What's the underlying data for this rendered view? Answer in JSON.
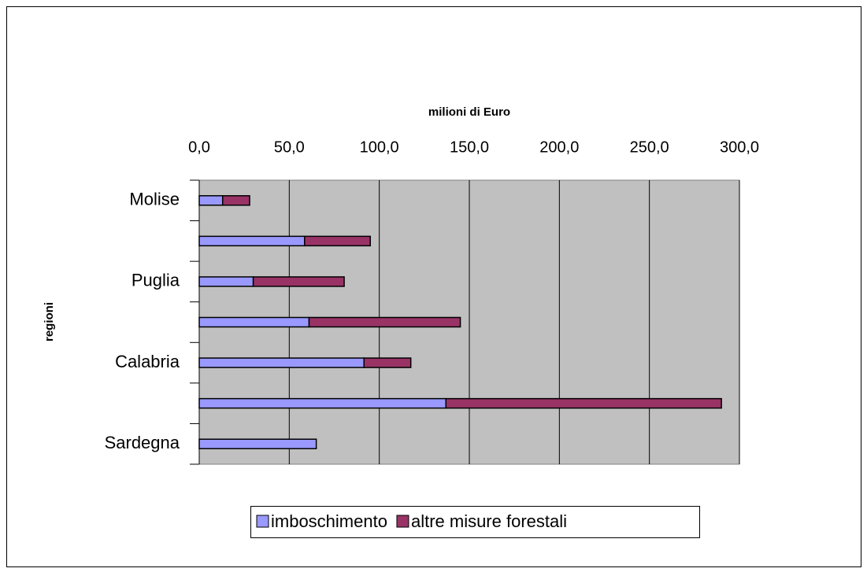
{
  "chart_data": {
    "type": "bar",
    "orientation": "horizontal",
    "stacked": true,
    "xlabel": "milioni di Euro",
    "ylabel": "regioni",
    "categories": [
      "Molise",
      null,
      "Puglia",
      null,
      "Calabria",
      null,
      "Sardegna"
    ],
    "series": [
      {
        "name": "imboschimento",
        "color": "#9999ff",
        "values": [
          13,
          58.5,
          30,
          61,
          91.5,
          137,
          65
        ]
      },
      {
        "name": "altre misure forestali",
        "color": "#993366",
        "values": [
          15,
          36.5,
          50.5,
          84,
          26,
          153,
          0
        ]
      }
    ],
    "xlim": [
      0,
      300
    ],
    "xticks": [
      {
        "value": 0,
        "label": "0,0"
      },
      {
        "value": 50,
        "label": "50,0"
      },
      {
        "value": 100,
        "label": "100,0"
      },
      {
        "value": 150,
        "label": "150,0"
      },
      {
        "value": 200,
        "label": "200,0"
      },
      {
        "value": 250,
        "label": "250,0"
      },
      {
        "value": 300,
        "label": "300,0"
      }
    ],
    "grid": true,
    "legend": "bottom"
  }
}
